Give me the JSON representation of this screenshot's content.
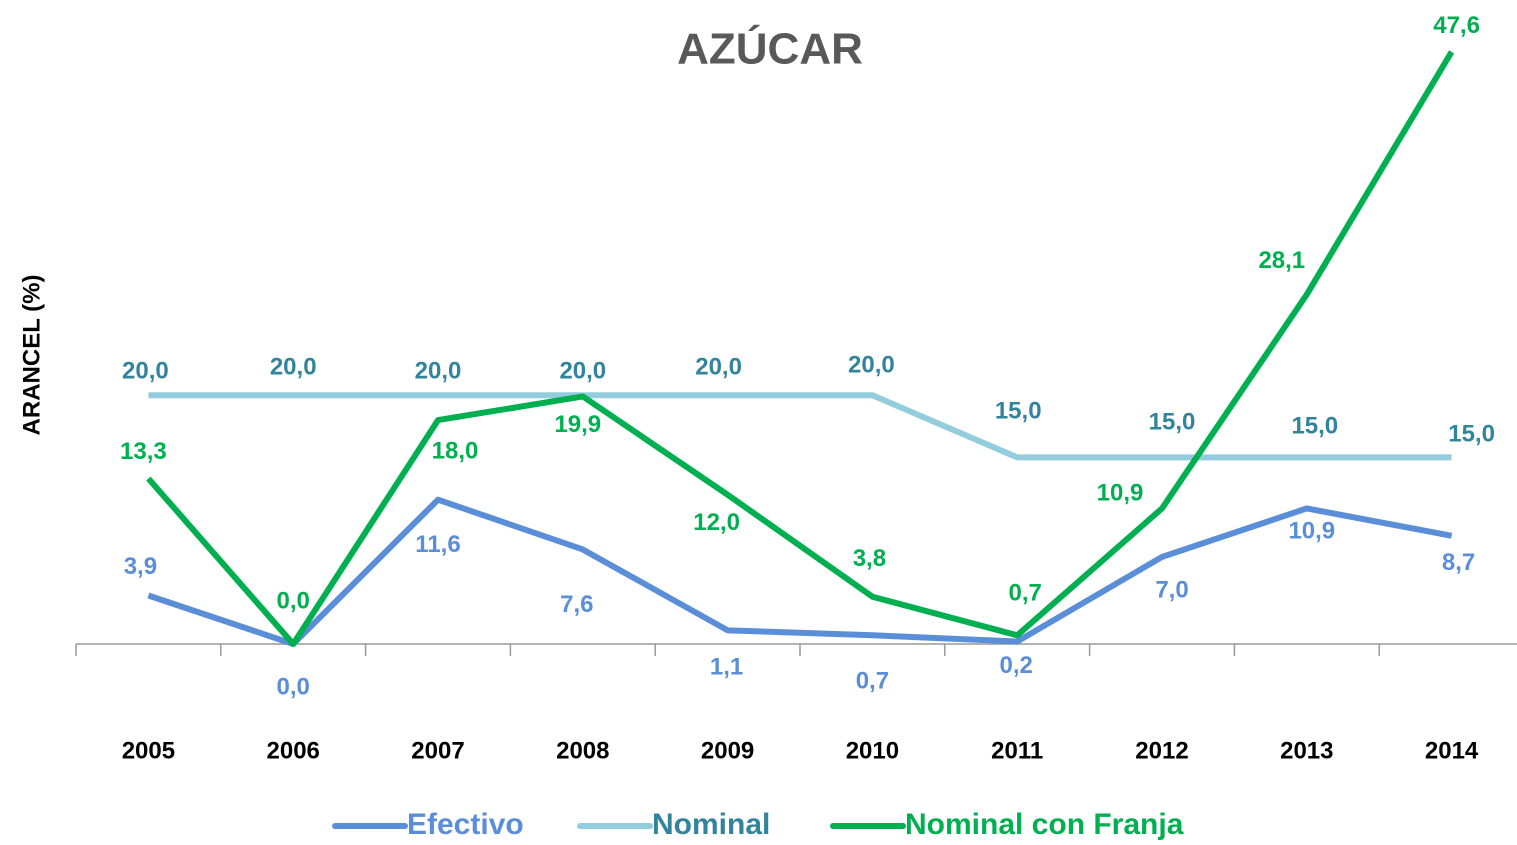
{
  "chart_data": {
    "type": "line",
    "title": "AZÚCAR",
    "y_label": "ARANCEL (%)",
    "categories": [
      "2005",
      "2006",
      "2007",
      "2008",
      "2009",
      "2010",
      "2011",
      "2012",
      "2013",
      "2014"
    ],
    "ylim": [
      0,
      50
    ],
    "series": [
      {
        "name": "Efectivo",
        "color": "#5b8ed8",
        "label_color": "#5b8ed8",
        "values": [
          3.9,
          0.0,
          11.6,
          7.6,
          1.1,
          0.7,
          0.2,
          7.0,
          10.9,
          8.7
        ],
        "value_labels": [
          "3,9",
          "0,0",
          "11,6",
          "7,6",
          "1,1",
          "0,7",
          "0,2",
          "7,0",
          "10,9",
          "8,7"
        ]
      },
      {
        "name": "Nominal",
        "color": "#93cddd",
        "label_color": "#31849b",
        "values": [
          20.0,
          20.0,
          20.0,
          20.0,
          20.0,
          20.0,
          15.0,
          15.0,
          15.0,
          15.0
        ],
        "value_labels": [
          "20,0",
          "20,0",
          "20,0",
          "20,0",
          "20,0",
          "20,0",
          "15,0",
          "15,0",
          "15,0",
          "15,0"
        ]
      },
      {
        "name": "Nominal con Franja",
        "color": "#00b050",
        "label_color": "#00b050",
        "values": [
          13.3,
          0.0,
          18.0,
          19.9,
          12.0,
          3.8,
          0.7,
          10.9,
          28.1,
          47.6
        ],
        "value_labels": [
          "13,3",
          "0,0",
          "18,0",
          "19,9",
          "12,0",
          "3,8",
          "0,7",
          "10,9",
          "28,1",
          "47,6"
        ]
      }
    ]
  }
}
